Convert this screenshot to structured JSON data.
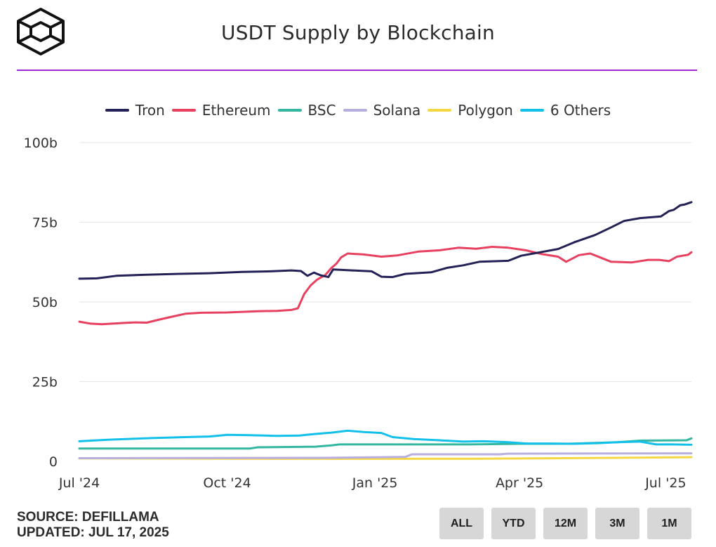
{
  "header": {
    "title": "USDT Supply by Blockchain"
  },
  "footer": {
    "source": "SOURCE: DEFILLAMA",
    "updated": "UPDATED: JUL 17, 2025"
  },
  "range_buttons": [
    "ALL",
    "YTD",
    "12M",
    "3M",
    "1M"
  ],
  "colors": {
    "accent": "#9b27d8",
    "Tron": "#232155",
    "Ethereum": "#e8405f",
    "BSC": "#34b7a1",
    "Solana": "#b8afe0",
    "Polygon": "#f4d843",
    "6 Others": "#13c0e9"
  },
  "chart_data": {
    "type": "line",
    "title": "USDT Supply by Blockchain",
    "xlabel": "",
    "ylabel": "",
    "ylim": [
      0,
      100
    ],
    "y_unit": "billions",
    "yticks": [
      {
        "value": 0,
        "label": "0"
      },
      {
        "value": 25,
        "label": "25b"
      },
      {
        "value": 50,
        "label": "50b"
      },
      {
        "value": 75,
        "label": "75b"
      },
      {
        "value": 100,
        "label": "100b"
      }
    ],
    "xlim": [
      "2024-07-01",
      "2025-07-17"
    ],
    "xticks": [
      {
        "date": "2024-07-01",
        "label": "Jul '24"
      },
      {
        "date": "2024-10-01",
        "label": "Oct '24"
      },
      {
        "date": "2025-01-01",
        "label": "Jan '25"
      },
      {
        "date": "2025-04-01",
        "label": "Apr '25"
      },
      {
        "date": "2025-07-01",
        "label": "Jul '25"
      }
    ],
    "grid": true,
    "legend": "top",
    "series": [
      {
        "name": "Tron",
        "color": "#232155",
        "points": [
          [
            "2024-07-01",
            57.3
          ],
          [
            "2024-07-12",
            57.4
          ],
          [
            "2024-07-24",
            58.2
          ],
          [
            "2024-08-10",
            58.5
          ],
          [
            "2024-09-01",
            58.8
          ],
          [
            "2024-09-20",
            59.0
          ],
          [
            "2024-10-10",
            59.4
          ],
          [
            "2024-10-28",
            59.6
          ],
          [
            "2024-11-10",
            59.9
          ],
          [
            "2024-11-16",
            59.7
          ],
          [
            "2024-11-20",
            58.2
          ],
          [
            "2024-11-24",
            59.2
          ],
          [
            "2024-11-28",
            58.4
          ],
          [
            "2024-12-03",
            57.8
          ],
          [
            "2024-12-06",
            60.2
          ],
          [
            "2024-12-18",
            59.9
          ],
          [
            "2024-12-30",
            59.6
          ],
          [
            "2025-01-05",
            57.9
          ],
          [
            "2025-01-12",
            57.8
          ],
          [
            "2025-01-20",
            58.8
          ],
          [
            "2025-02-05",
            59.3
          ],
          [
            "2025-02-15",
            60.7
          ],
          [
            "2025-02-25",
            61.5
          ],
          [
            "2025-03-07",
            62.6
          ],
          [
            "2025-03-25",
            62.9
          ],
          [
            "2025-04-02",
            64.5
          ],
          [
            "2025-04-14",
            65.6
          ],
          [
            "2025-04-25",
            66.6
          ],
          [
            "2025-05-05",
            68.7
          ],
          [
            "2025-05-18",
            71.0
          ],
          [
            "2025-05-28",
            73.4
          ],
          [
            "2025-06-05",
            75.4
          ],
          [
            "2025-06-15",
            76.3
          ],
          [
            "2025-06-28",
            76.8
          ],
          [
            "2025-07-03",
            78.5
          ],
          [
            "2025-07-06",
            78.9
          ],
          [
            "2025-07-10",
            80.3
          ],
          [
            "2025-07-13",
            80.6
          ],
          [
            "2025-07-17",
            81.3
          ]
        ]
      },
      {
        "name": "Ethereum",
        "color": "#e8405f",
        "points": [
          [
            "2024-07-01",
            43.8
          ],
          [
            "2024-07-08",
            43.2
          ],
          [
            "2024-07-15",
            43.0
          ],
          [
            "2024-07-28",
            43.4
          ],
          [
            "2024-08-05",
            43.6
          ],
          [
            "2024-08-12",
            43.5
          ],
          [
            "2024-08-20",
            44.5
          ],
          [
            "2024-08-28",
            45.4
          ],
          [
            "2024-09-05",
            46.3
          ],
          [
            "2024-09-15",
            46.6
          ],
          [
            "2024-10-01",
            46.7
          ],
          [
            "2024-10-20",
            47.1
          ],
          [
            "2024-11-01",
            47.2
          ],
          [
            "2024-11-10",
            47.5
          ],
          [
            "2024-11-14",
            48.0
          ],
          [
            "2024-11-18",
            52.5
          ],
          [
            "2024-11-22",
            55.2
          ],
          [
            "2024-11-26",
            57.0
          ],
          [
            "2024-12-01",
            58.4
          ],
          [
            "2024-12-05",
            60.7
          ],
          [
            "2024-12-08",
            62.0
          ],
          [
            "2024-12-11",
            64.0
          ],
          [
            "2024-12-15",
            65.2
          ],
          [
            "2024-12-25",
            64.9
          ],
          [
            "2025-01-05",
            64.2
          ],
          [
            "2025-01-15",
            64.6
          ],
          [
            "2025-01-28",
            65.8
          ],
          [
            "2025-02-10",
            66.2
          ],
          [
            "2025-02-22",
            67.0
          ],
          [
            "2025-03-05",
            66.7
          ],
          [
            "2025-03-15",
            67.3
          ],
          [
            "2025-03-25",
            67.0
          ],
          [
            "2025-04-05",
            66.2
          ],
          [
            "2025-04-15",
            65.0
          ],
          [
            "2025-04-25",
            64.2
          ],
          [
            "2025-04-30",
            62.6
          ],
          [
            "2025-05-08",
            64.7
          ],
          [
            "2025-05-15",
            65.2
          ],
          [
            "2025-05-22",
            63.8
          ],
          [
            "2025-05-28",
            62.6
          ],
          [
            "2025-06-10",
            62.4
          ],
          [
            "2025-06-20",
            63.2
          ],
          [
            "2025-06-27",
            63.2
          ],
          [
            "2025-07-03",
            62.8
          ],
          [
            "2025-07-08",
            64.2
          ],
          [
            "2025-07-15",
            64.8
          ],
          [
            "2025-07-17",
            65.6
          ]
        ]
      },
      {
        "name": "BSC",
        "color": "#34b7a1",
        "points": [
          [
            "2024-07-01",
            4.0
          ],
          [
            "2024-10-15",
            4.0
          ],
          [
            "2024-10-20",
            4.4
          ],
          [
            "2024-11-25",
            4.6
          ],
          [
            "2024-12-05",
            5.0
          ],
          [
            "2024-12-10",
            5.3
          ],
          [
            "2025-01-01",
            5.3
          ],
          [
            "2025-03-01",
            5.3
          ],
          [
            "2025-03-15",
            5.4
          ],
          [
            "2025-04-01",
            5.5
          ],
          [
            "2025-05-01",
            5.5
          ],
          [
            "2025-06-01",
            6.0
          ],
          [
            "2025-06-15",
            6.5
          ],
          [
            "2025-07-14",
            6.6
          ],
          [
            "2025-07-17",
            7.2
          ]
        ]
      },
      {
        "name": "Solana",
        "color": "#b8afe0",
        "points": [
          [
            "2024-07-01",
            1.0
          ],
          [
            "2024-12-01",
            1.1
          ],
          [
            "2025-01-05",
            1.3
          ],
          [
            "2025-01-20",
            1.4
          ],
          [
            "2025-01-24",
            2.2
          ],
          [
            "2025-03-20",
            2.2
          ],
          [
            "2025-03-24",
            2.4
          ],
          [
            "2025-07-17",
            2.5
          ]
        ]
      },
      {
        "name": "Polygon",
        "color": "#f4d843",
        "points": [
          [
            "2024-07-01",
            0.9
          ],
          [
            "2024-11-01",
            0.8
          ],
          [
            "2025-03-01",
            0.8
          ],
          [
            "2025-06-01",
            1.1
          ],
          [
            "2025-07-17",
            1.3
          ]
        ]
      },
      {
        "name": "6 Others",
        "color": "#13c0e9",
        "points": [
          [
            "2024-07-01",
            6.3
          ],
          [
            "2024-07-20",
            6.8
          ],
          [
            "2024-08-15",
            7.3
          ],
          [
            "2024-09-05",
            7.6
          ],
          [
            "2024-09-20",
            7.8
          ],
          [
            "2024-10-01",
            8.3
          ],
          [
            "2024-10-15",
            8.2
          ],
          [
            "2024-11-01",
            8.0
          ],
          [
            "2024-11-15",
            8.1
          ],
          [
            "2024-11-25",
            8.6
          ],
          [
            "2024-12-05",
            9.0
          ],
          [
            "2024-12-15",
            9.6
          ],
          [
            "2024-12-25",
            9.2
          ],
          [
            "2025-01-05",
            8.9
          ],
          [
            "2025-01-12",
            7.6
          ],
          [
            "2025-01-25",
            7.0
          ],
          [
            "2025-02-10",
            6.6
          ],
          [
            "2025-02-25",
            6.2
          ],
          [
            "2025-03-10",
            6.3
          ],
          [
            "2025-03-25",
            6.0
          ],
          [
            "2025-04-05",
            5.6
          ],
          [
            "2025-04-20",
            5.6
          ],
          [
            "2025-05-05",
            5.5
          ],
          [
            "2025-05-20",
            5.7
          ],
          [
            "2025-06-01",
            6.0
          ],
          [
            "2025-06-15",
            6.2
          ],
          [
            "2025-06-25",
            5.3
          ],
          [
            "2025-07-05",
            5.3
          ],
          [
            "2025-07-17",
            5.2
          ]
        ]
      }
    ]
  }
}
